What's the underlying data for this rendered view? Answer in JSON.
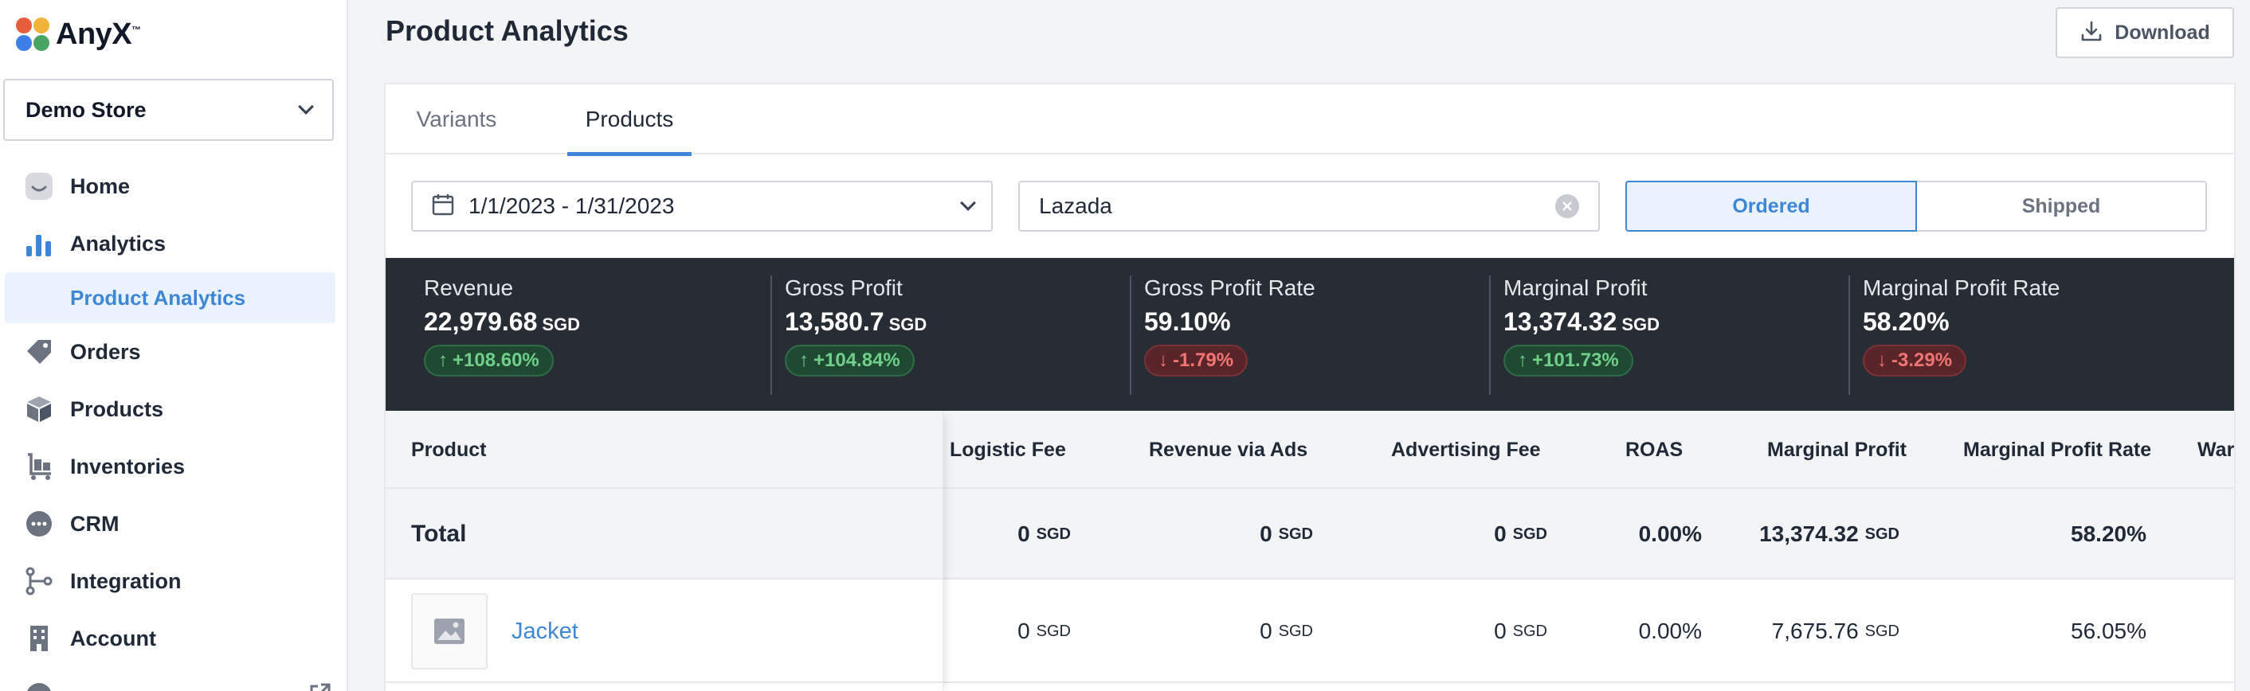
{
  "app": {
    "logo_text": "AnyX",
    "logo_tm": "™",
    "store": "Demo Store"
  },
  "sidebar": {
    "items": [
      {
        "label": "Home",
        "icon": "home-icon"
      },
      {
        "label": "Analytics",
        "icon": "bar-chart-icon"
      },
      {
        "label": "Product Analytics",
        "icon": ""
      },
      {
        "label": "Orders",
        "icon": "tag-icon"
      },
      {
        "label": "Products",
        "icon": "box-icon"
      },
      {
        "label": "Inventories",
        "icon": "cart-icon"
      },
      {
        "label": "CRM",
        "icon": "chat-bubble-icon"
      },
      {
        "label": "Integration",
        "icon": "flow-icon"
      },
      {
        "label": "Account",
        "icon": "building-icon"
      }
    ]
  },
  "header": {
    "title": "Product Analytics",
    "download_label": "Download"
  },
  "tabs": [
    {
      "label": "Variants"
    },
    {
      "label": "Products"
    }
  ],
  "filters": {
    "date_range": "1/1/2023 - 1/31/2023",
    "channel": "Lazada",
    "ordered_label": "Ordered",
    "shipped_label": "Shipped"
  },
  "kpis": [
    {
      "label": "Revenue",
      "value": "22,979.68",
      "unit": "SGD",
      "change": "+108.60%",
      "direction": "up"
    },
    {
      "label": "Gross Profit",
      "value": "13,580.7",
      "unit": "SGD",
      "change": "+104.84%",
      "direction": "up"
    },
    {
      "label": "Gross Profit Rate",
      "value": "59.10%",
      "unit": "",
      "change": "-1.79%",
      "direction": "down"
    },
    {
      "label": "Marginal Profit",
      "value": "13,374.32",
      "unit": "SGD",
      "change": "+101.73%",
      "direction": "up"
    },
    {
      "label": "Marginal Profit Rate",
      "value": "58.20%",
      "unit": "",
      "change": "-3.29%",
      "direction": "down"
    }
  ],
  "table": {
    "columns": [
      "Product",
      "Logistic Fee",
      "Revenue via Ads",
      "Advertising Fee",
      "ROAS",
      "Marginal Profit",
      "Marginal Profit Rate",
      "War"
    ],
    "total": {
      "label": "Total",
      "logistic_fee": "0",
      "logistic_fee_unit": "SGD",
      "revenue_via_ads": "0",
      "revenue_via_ads_unit": "SGD",
      "advertising_fee": "0",
      "advertising_fee_unit": "SGD",
      "roas": "0.00%",
      "marginal_profit": "13,374.32",
      "marginal_profit_unit": "SGD",
      "marginal_profit_rate": "58.20%"
    },
    "rows": [
      {
        "product": "Jacket",
        "logistic_fee": "0",
        "logistic_fee_unit": "SGD",
        "revenue_via_ads": "0",
        "revenue_via_ads_unit": "SGD",
        "advertising_fee": "0",
        "advertising_fee_unit": "SGD",
        "roas": "0.00%",
        "marginal_profit": "7,675.76",
        "marginal_profit_unit": "SGD",
        "marginal_profit_rate": "56.05%"
      }
    ]
  },
  "colors": {
    "accent": "#3d87d6",
    "kpi_bg": "#272d35",
    "up": "#6fd08b",
    "down": "#f27474"
  }
}
